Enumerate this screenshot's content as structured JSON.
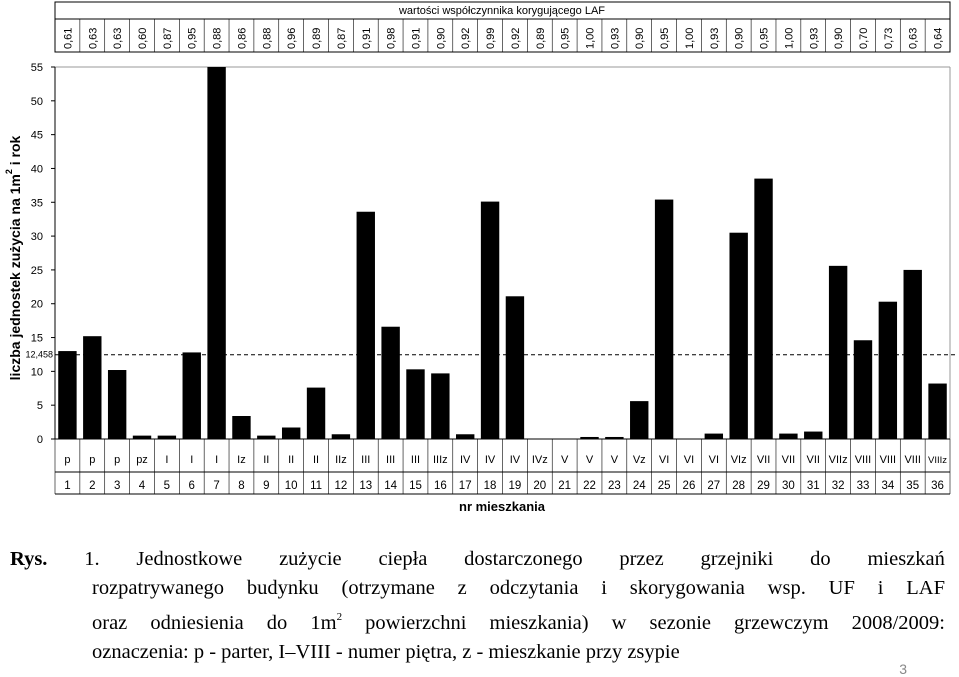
{
  "chart_data": {
    "type": "bar",
    "ylabel_main": "liczba jednostek zużycia na 1m",
    "ylabel_sup": "2",
    "ylabel_tail": " i rok",
    "xlabel": "nr mieszkania",
    "laf_title": "wartości współczynnika korygującego LAF",
    "ylim": [
      0,
      55
    ],
    "yticks": [
      0,
      5,
      10,
      15,
      20,
      25,
      30,
      35,
      40,
      45,
      50,
      55
    ],
    "reference_line": {
      "value": 12.458,
      "label": "12,458"
    },
    "categories": [
      "1",
      "2",
      "3",
      "4",
      "5",
      "6",
      "7",
      "8",
      "9",
      "10",
      "11",
      "12",
      "13",
      "14",
      "15",
      "16",
      "17",
      "18",
      "19",
      "20",
      "21",
      "22",
      "23",
      "24",
      "25",
      "26",
      "27",
      "28",
      "29",
      "30",
      "31",
      "32",
      "33",
      "34",
      "35",
      "36"
    ],
    "floors": [
      "p",
      "p",
      "p",
      "pz",
      "I",
      "I",
      "I",
      "Iz",
      "II",
      "II",
      "II",
      "IIz",
      "III",
      "III",
      "III",
      "IIIz",
      "IV",
      "IV",
      "IV",
      "IVz",
      "V",
      "V",
      "V",
      "Vz",
      "VI",
      "VI",
      "VI",
      "VIz",
      "VII",
      "VII",
      "VII",
      "VIIz",
      "VIII",
      "VIII",
      "VIII",
      "VIIIz"
    ],
    "laf": [
      "0,61",
      "0,63",
      "0,63",
      "0,60",
      "0,87",
      "0,95",
      "0,88",
      "0,86",
      "0,88",
      "0,96",
      "0,89",
      "0,87",
      "0,91",
      "0,98",
      "0,91",
      "0,90",
      "0,92",
      "0,99",
      "0,92",
      "0,89",
      "0,95",
      "1,00",
      "0,93",
      "0,90",
      "0,95",
      "1,00",
      "0,93",
      "0,90",
      "0,95",
      "1,00",
      "0,93",
      "0,90",
      "0,70",
      "0,73",
      "0,63",
      "0,64"
    ],
    "values": [
      13.0,
      15.2,
      10.2,
      0.5,
      0.5,
      12.8,
      55,
      3.4,
      0.5,
      1.7,
      7.6,
      0.7,
      33.6,
      16.6,
      10.3,
      9.7,
      0.7,
      35.1,
      21.1,
      0,
      0,
      0.3,
      0.3,
      5.6,
      35.4,
      0,
      0.8,
      30.5,
      38.5,
      0.8,
      1.1,
      25.6,
      14.6,
      20.3,
      25.0,
      8.2
    ]
  },
  "caption": {
    "label": "Rys.",
    "number": "1.",
    "l1_words": [
      "Jednostkowe",
      "zużycie",
      "ciepła",
      "dostarczonego",
      "przez",
      "grzejniki",
      "do",
      "mieszkań"
    ],
    "l2": "rozpatrywanego budynku (otrzymane z odczytania i skorygowania wsp. UF i LAF",
    "l3_a": "oraz odniesienia do 1m",
    "l3_sup": "2",
    "l3_b": " powierzchni mieszkania) w  sezonie grzewczym 2008/2009:",
    "l4": "oznaczenia: p - parter, I–VIII - numer piętra, z - mieszkanie przy zsypie"
  },
  "page_number": "3"
}
